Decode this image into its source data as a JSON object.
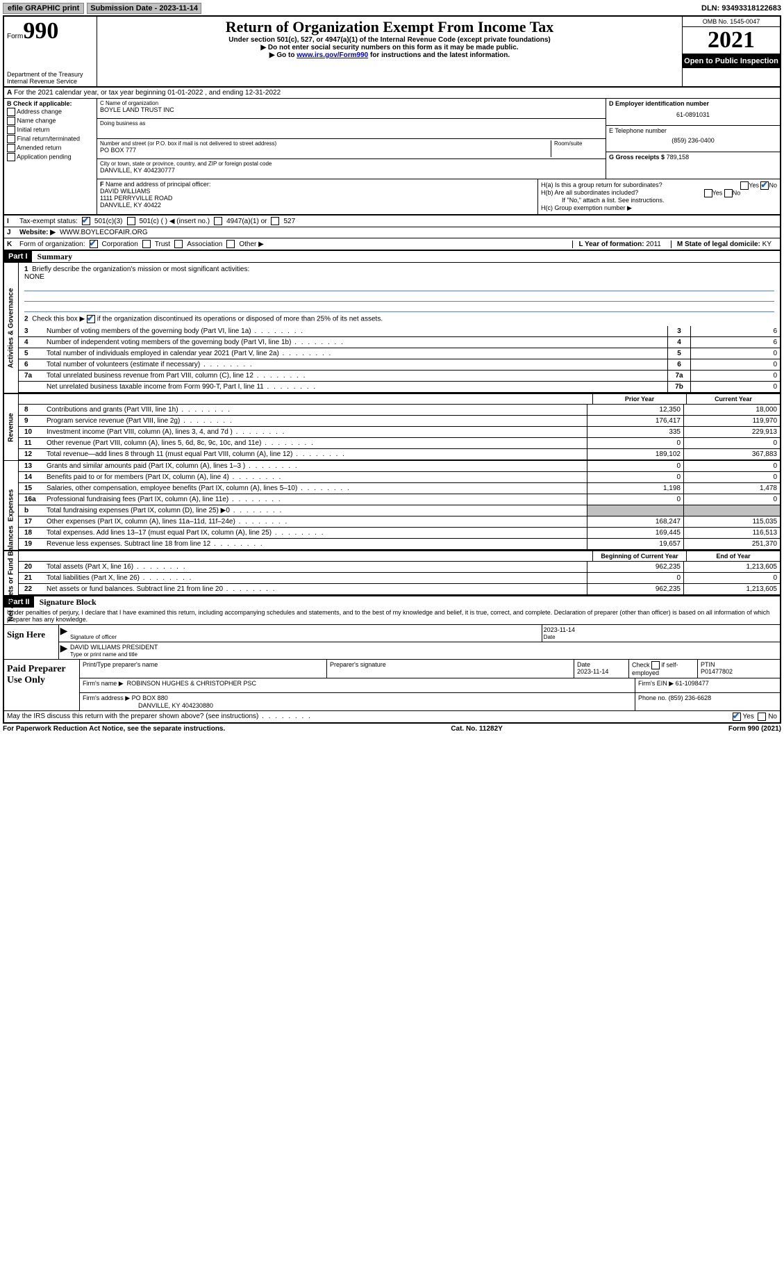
{
  "topbar": {
    "efile": "efile GRAPHIC print",
    "submission": "Submission Date - 2023-11-14",
    "dln": "DLN: 93493318122683"
  },
  "header": {
    "form_prefix": "Form",
    "form_number": "990",
    "dept": "Department of the Treasury",
    "irs": "Internal Revenue Service",
    "title": "Return of Organization Exempt From Income Tax",
    "sub1": "Under section 501(c), 527, or 4947(a)(1) of the Internal Revenue Code (except private foundations)",
    "sub2": "▶ Do not enter social security numbers on this form as it may be made public.",
    "sub3_pre": "▶ Go to ",
    "sub3_link": "www.irs.gov/Form990",
    "sub3_post": " for instructions and the latest information.",
    "omb": "OMB No. 1545-0047",
    "year": "2021",
    "inspect": "Open to Public Inspection"
  },
  "rowA": {
    "label": "A",
    "text": "For the 2021 calendar year, or tax year beginning 01-01-2022   , and ending 12-31-2022"
  },
  "colB": {
    "label": "B Check if applicable:",
    "items": [
      "Address change",
      "Name change",
      "Initial return",
      "Final return/terminated",
      "Amended return",
      "Application pending"
    ]
  },
  "colC": {
    "name_label": "C Name of organization",
    "name": "BOYLE LAND TRUST INC",
    "dba_label": "Doing business as",
    "dba": "",
    "addr_label": "Number and street (or P.O. box if mail is not delivered to street address)",
    "room_label": "Room/suite",
    "addr": "PO BOX 777",
    "city_label": "City or town, state or province, country, and ZIP or foreign postal code",
    "city": "DANVILLE, KY  404230777"
  },
  "colD": {
    "ein_label": "D Employer identification number",
    "ein": "61-0891031",
    "phone_label": "E Telephone number",
    "phone": "(859) 236-0400",
    "gross_label": "G Gross receipts $",
    "gross": "789,158"
  },
  "rowF": {
    "label": "F",
    "text": "Name and address of principal officer:",
    "name": "DAVID WILLIAMS",
    "addr1": "1111 PERRYVILLE ROAD",
    "addr2": "DANVILLE, KY  40422"
  },
  "rowH": {
    "ha": "H(a)  Is this a group return for subordinates?",
    "hb": "H(b)  Are all subordinates included?",
    "hb_note": "If \"No,\" attach a list. See instructions.",
    "hc": "H(c)  Group exemption number ▶",
    "yes": "Yes",
    "no": "No"
  },
  "rowI": {
    "label": "I",
    "text": "Tax-exempt status:",
    "opts": [
      "501(c)(3)",
      "501(c) (  ) ◀ (insert no.)",
      "4947(a)(1) or",
      "527"
    ]
  },
  "rowJ": {
    "label": "J",
    "text": "Website: ▶",
    "val": "WWW.BOYLECOFAIR.ORG"
  },
  "rowK": {
    "label": "K",
    "text": "Form of organization:",
    "opts": [
      "Corporation",
      "Trust",
      "Association",
      "Other ▶"
    ],
    "l_label": "L Year of formation:",
    "l_val": "2011",
    "m_label": "M State of legal domicile:",
    "m_val": "KY"
  },
  "part1": {
    "header": "Part I",
    "title": "Summary"
  },
  "summary": {
    "q1_label": "1",
    "q1": "Briefly describe the organization's mission or most significant activities:",
    "q1_val": "NONE",
    "q2_label": "2",
    "q2_pre": "Check this box ▶",
    "q2_post": "if the organization discontinued its operations or disposed of more than 25% of its net assets.",
    "lines": [
      {
        "n": "3",
        "t": "Number of voting members of the governing body (Part VI, line 1a)",
        "box": "3",
        "v": "6"
      },
      {
        "n": "4",
        "t": "Number of independent voting members of the governing body (Part VI, line 1b)",
        "box": "4",
        "v": "6"
      },
      {
        "n": "5",
        "t": "Total number of individuals employed in calendar year 2021 (Part V, line 2a)",
        "box": "5",
        "v": "0"
      },
      {
        "n": "6",
        "t": "Total number of volunteers (estimate if necessary)",
        "box": "6",
        "v": "0"
      },
      {
        "n": "7a",
        "t": "Total unrelated business revenue from Part VIII, column (C), line 12",
        "box": "7a",
        "v": "0"
      },
      {
        "n": "",
        "t": "Net unrelated business taxable income from Form 990-T, Part I, line 11",
        "box": "7b",
        "v": "0"
      }
    ],
    "prior_header": "Prior Year",
    "current_header": "Current Year",
    "rev": [
      {
        "n": "8",
        "t": "Contributions and grants (Part VIII, line 1h)",
        "p": "12,350",
        "c": "18,000"
      },
      {
        "n": "9",
        "t": "Program service revenue (Part VIII, line 2g)",
        "p": "176,417",
        "c": "119,970"
      },
      {
        "n": "10",
        "t": "Investment income (Part VIII, column (A), lines 3, 4, and 7d )",
        "p": "335",
        "c": "229,913"
      },
      {
        "n": "11",
        "t": "Other revenue (Part VIII, column (A), lines 5, 6d, 8c, 9c, 10c, and 11e)",
        "p": "0",
        "c": "0"
      },
      {
        "n": "12",
        "t": "Total revenue—add lines 8 through 11 (must equal Part VIII, column (A), line 12)",
        "p": "189,102",
        "c": "367,883"
      }
    ],
    "exp": [
      {
        "n": "13",
        "t": "Grants and similar amounts paid (Part IX, column (A), lines 1–3 )",
        "p": "0",
        "c": "0"
      },
      {
        "n": "14",
        "t": "Benefits paid to or for members (Part IX, column (A), line 4)",
        "p": "0",
        "c": "0"
      },
      {
        "n": "15",
        "t": "Salaries, other compensation, employee benefits (Part IX, column (A), lines 5–10)",
        "p": "1,198",
        "c": "1,478"
      },
      {
        "n": "16a",
        "t": "Professional fundraising fees (Part IX, column (A), line 11e)",
        "p": "0",
        "c": "0"
      },
      {
        "n": "b",
        "t": "Total fundraising expenses (Part IX, column (D), line 25) ▶0",
        "p": "",
        "c": "",
        "grey": true
      },
      {
        "n": "17",
        "t": "Other expenses (Part IX, column (A), lines 11a–11d, 11f–24e)",
        "p": "168,247",
        "c": "115,035"
      },
      {
        "n": "18",
        "t": "Total expenses. Add lines 13–17 (must equal Part IX, column (A), line 25)",
        "p": "169,445",
        "c": "116,513"
      },
      {
        "n": "19",
        "t": "Revenue less expenses. Subtract line 18 from line 12",
        "p": "19,657",
        "c": "251,370"
      }
    ],
    "begin_header": "Beginning of Current Year",
    "end_header": "End of Year",
    "net": [
      {
        "n": "20",
        "t": "Total assets (Part X, line 16)",
        "p": "962,235",
        "c": "1,213,605"
      },
      {
        "n": "21",
        "t": "Total liabilities (Part X, line 26)",
        "p": "0",
        "c": "0"
      },
      {
        "n": "22",
        "t": "Net assets or fund balances. Subtract line 21 from line 20",
        "p": "962,235",
        "c": "1,213,605"
      }
    ]
  },
  "vlabels": {
    "activities": "Activities & Governance",
    "revenue": "Revenue",
    "expenses": "Expenses",
    "net": "Net Assets or Fund Balances"
  },
  "part2": {
    "header": "Part II",
    "title": "Signature Block",
    "disclaimer": "Under penalties of perjury, I declare that I have examined this return, including accompanying schedules and statements, and to the best of my knowledge and belief, it is true, correct, and complete. Declaration of preparer (other than officer) is based on all information of which preparer has any knowledge."
  },
  "sign": {
    "label": "Sign Here",
    "sig_label": "Signature of officer",
    "date_label": "Date",
    "date": "2023-11-14",
    "name": "DAVID WILLIAMS  PRESIDENT",
    "name_label": "Type or print name and title"
  },
  "preparer": {
    "label": "Paid Preparer Use Only",
    "h1": "Print/Type preparer's name",
    "h2": "Preparer's signature",
    "h3": "Date",
    "h3v": "2023-11-14",
    "h4": "Check",
    "h4b": "if self-employed",
    "h5": "PTIN",
    "h5v": "P01477802",
    "firm_name_label": "Firm's name    ▶",
    "firm_name": "ROBINSON HUGHES & CHRISTOPHER PSC",
    "firm_ein_label": "Firm's EIN ▶",
    "firm_ein": "61-1098477",
    "firm_addr_label": "Firm's address ▶",
    "firm_addr1": "PO BOX 880",
    "firm_addr2": "DANVILLE, KY  404230880",
    "phone_label": "Phone no.",
    "phone": "(859) 236-6628"
  },
  "footer": {
    "discuss": "May the IRS discuss this return with the preparer shown above? (see instructions)",
    "yes": "Yes",
    "no": "No",
    "paperwork": "For Paperwork Reduction Act Notice, see the separate instructions.",
    "cat": "Cat. No. 11282Y",
    "form": "Form 990 (2021)"
  }
}
